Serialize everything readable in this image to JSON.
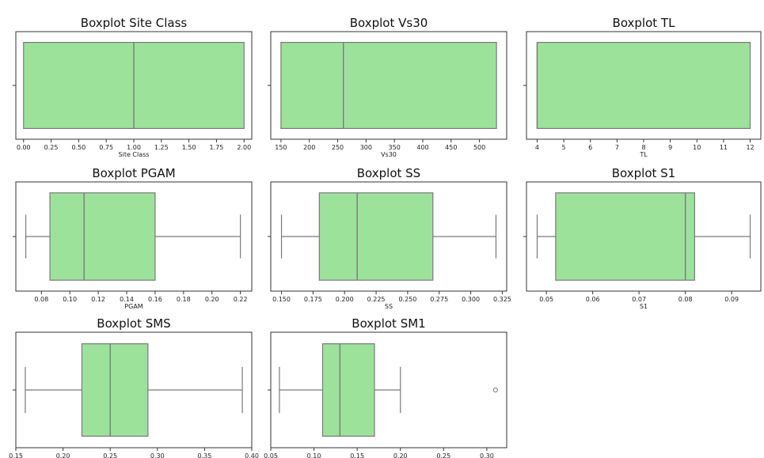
{
  "colors": {
    "box_fill": "#9de29b",
    "box_stroke": "#7a7a7a",
    "frame": "#333333"
  },
  "chart_data": [
    {
      "type": "box",
      "title": "Boxplot Site Class",
      "xlabel": "Site Class",
      "xlim": [
        -0.07,
        2.07
      ],
      "ticks": [
        0.0,
        0.25,
        0.5,
        0.75,
        1.0,
        1.25,
        1.5,
        1.75,
        2.0
      ],
      "tick_labels": [
        "0.00",
        "0.25",
        "0.50",
        "0.75",
        "1.00",
        "1.25",
        "1.50",
        "1.75",
        "2.00"
      ],
      "whisker_low": 0,
      "q1": 0,
      "median": 1,
      "q3": 2,
      "whisker_high": 2,
      "outliers": []
    },
    {
      "type": "box",
      "title": "Boxplot Vs30",
      "xlabel": "Vs30",
      "xlim": [
        132,
        548
      ],
      "ticks": [
        150,
        200,
        250,
        300,
        350,
        400,
        450,
        500
      ],
      "tick_labels": [
        "150",
        "200",
        "250",
        "300",
        "350",
        "400",
        "450",
        "500"
      ],
      "whisker_low": 150,
      "q1": 150,
      "median": 260,
      "q3": 530,
      "whisker_high": 530,
      "outliers": []
    },
    {
      "type": "box",
      "title": "Boxplot TL",
      "xlabel": "TL",
      "xlim": [
        3.6,
        12.4
      ],
      "ticks": [
        4,
        5,
        6,
        7,
        8,
        9,
        10,
        11,
        12
      ],
      "tick_labels": [
        "4",
        "5",
        "6",
        "7",
        "8",
        "9",
        "10",
        "11",
        "12"
      ],
      "whisker_low": 4,
      "q1": 4,
      "median": 4,
      "q3": 12,
      "whisker_high": 12,
      "outliers": []
    },
    {
      "type": "box",
      "title": "Boxplot PGAM",
      "xlabel": "PGAM",
      "xlim": [
        0.062,
        0.228
      ],
      "ticks": [
        0.08,
        0.1,
        0.12,
        0.14,
        0.16,
        0.18,
        0.2,
        0.22
      ],
      "tick_labels": [
        "0.08",
        "0.10",
        "0.12",
        "0.14",
        "0.16",
        "0.18",
        "0.20",
        "0.22"
      ],
      "whisker_low": 0.069,
      "q1": 0.086,
      "median": 0.11,
      "q3": 0.16,
      "whisker_high": 0.22,
      "outliers": []
    },
    {
      "type": "box",
      "title": "Boxplot SS",
      "xlabel": "SS",
      "xlim": [
        0.1415,
        0.3285
      ],
      "ticks": [
        0.15,
        0.175,
        0.2,
        0.225,
        0.25,
        0.275,
        0.3,
        0.325
      ],
      "tick_labels": [
        "0.150",
        "0.175",
        "0.200",
        "0.225",
        "0.250",
        "0.275",
        "0.300",
        "0.325"
      ],
      "whisker_low": 0.15,
      "q1": 0.18,
      "median": 0.21,
      "q3": 0.27,
      "whisker_high": 0.32,
      "outliers": []
    },
    {
      "type": "box",
      "title": "Boxplot S1",
      "xlabel": "S1",
      "xlim": [
        0.0457,
        0.0963
      ],
      "ticks": [
        0.05,
        0.06,
        0.07,
        0.08,
        0.09
      ],
      "tick_labels": [
        "0.05",
        "0.06",
        "0.07",
        "0.08",
        "0.09"
      ],
      "whisker_low": 0.048,
      "q1": 0.052,
      "median": 0.08,
      "q3": 0.082,
      "whisker_high": 0.094,
      "outliers": []
    },
    {
      "type": "box",
      "title": "Boxplot SMS",
      "xlabel": "SMS",
      "xlim": [
        0.15,
        0.4
      ],
      "ticks": [
        0.15,
        0.2,
        0.25,
        0.3,
        0.35,
        0.4
      ],
      "tick_labels": [
        "0.15",
        "0.20",
        "0.25",
        "0.30",
        "0.35",
        "0.40"
      ],
      "whisker_low": 0.16,
      "q1": 0.22,
      "median": 0.25,
      "q3": 0.29,
      "whisker_high": 0.39,
      "outliers": []
    },
    {
      "type": "box",
      "title": "Boxplot SM1",
      "xlabel": "SM1",
      "xlim": [
        0.05,
        0.323
      ],
      "ticks": [
        0.05,
        0.1,
        0.15,
        0.2,
        0.25,
        0.3
      ],
      "tick_labels": [
        "0.05",
        "0.10",
        "0.15",
        "0.20",
        "0.25",
        "0.30"
      ],
      "whisker_low": 0.06,
      "q1": 0.11,
      "median": 0.13,
      "q3": 0.17,
      "whisker_high": 0.2,
      "outliers": [
        0.31
      ]
    }
  ]
}
